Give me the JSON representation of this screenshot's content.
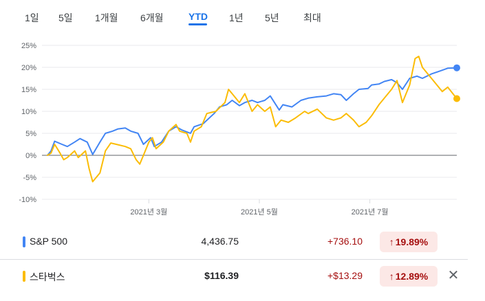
{
  "range_tabs": [
    {
      "label": "1일"
    },
    {
      "label": "5일"
    },
    {
      "label": "1개월"
    },
    {
      "label": "6개월"
    },
    {
      "label": "YTD",
      "active": true
    },
    {
      "label": "1년"
    },
    {
      "label": "5년"
    },
    {
      "label": "최대"
    }
  ],
  "chart_data": {
    "type": "line",
    "y_unit": "%",
    "ylim": [
      -10,
      25
    ],
    "yticks": [
      25,
      20,
      15,
      10,
      5,
      0,
      -5,
      -10
    ],
    "ytick_labels": [
      "25%",
      "20%",
      "15%",
      "10%",
      "5%",
      "0%",
      "-5%",
      "-10%"
    ],
    "xlim": [
      "2021-01-01",
      "2021-08-18"
    ],
    "xticks": [
      "2021-03-01",
      "2021-05-01",
      "2021-07-01"
    ],
    "xtick_labels": [
      "2021년 3월",
      "2021년 5월",
      "2021년 7월"
    ],
    "grid": "horizontal",
    "zero_line": true,
    "series": [
      {
        "name": "S&P 500",
        "color": "#4285f4",
        "points": [
          [
            "2021-01-04",
            0
          ],
          [
            "2021-01-06",
            1.0
          ],
          [
            "2021-01-08",
            3.2
          ],
          [
            "2021-01-12",
            2.5
          ],
          [
            "2021-01-15",
            2.0
          ],
          [
            "2021-01-19",
            3.0
          ],
          [
            "2021-01-22",
            3.8
          ],
          [
            "2021-01-26",
            3.0
          ],
          [
            "2021-01-29",
            0.2
          ],
          [
            "2021-02-02",
            3.0
          ],
          [
            "2021-02-05",
            5.0
          ],
          [
            "2021-02-09",
            5.5
          ],
          [
            "2021-02-12",
            6.0
          ],
          [
            "2021-02-16",
            6.2
          ],
          [
            "2021-02-19",
            5.5
          ],
          [
            "2021-02-23",
            5.0
          ],
          [
            "2021-02-26",
            2.5
          ],
          [
            "2021-03-02",
            4.0
          ],
          [
            "2021-03-04",
            2.0
          ],
          [
            "2021-03-08",
            3.0
          ],
          [
            "2021-03-12",
            5.5
          ],
          [
            "2021-03-16",
            6.5
          ],
          [
            "2021-03-19",
            5.8
          ],
          [
            "2021-03-24",
            5.0
          ],
          [
            "2021-03-26",
            6.5
          ],
          [
            "2021-03-31",
            7.2
          ],
          [
            "2021-04-06",
            9.5
          ],
          [
            "2021-04-09",
            11.0
          ],
          [
            "2021-04-13",
            11.5
          ],
          [
            "2021-04-16",
            12.5
          ],
          [
            "2021-04-20",
            11.3
          ],
          [
            "2021-04-23",
            12.0
          ],
          [
            "2021-04-27",
            12.5
          ],
          [
            "2021-04-30",
            12.0
          ],
          [
            "2021-05-04",
            12.5
          ],
          [
            "2021-05-07",
            13.5
          ],
          [
            "2021-05-12",
            10.3
          ],
          [
            "2021-05-14",
            11.5
          ],
          [
            "2021-05-19",
            11.0
          ],
          [
            "2021-05-24",
            12.5
          ],
          [
            "2021-05-28",
            13.0
          ],
          [
            "2021-06-02",
            13.3
          ],
          [
            "2021-06-07",
            13.5
          ],
          [
            "2021-06-11",
            14.0
          ],
          [
            "2021-06-15",
            13.8
          ],
          [
            "2021-06-18",
            12.5
          ],
          [
            "2021-06-22",
            14.0
          ],
          [
            "2021-06-25",
            15.0
          ],
          [
            "2021-06-30",
            15.2
          ],
          [
            "2021-07-02",
            16.0
          ],
          [
            "2021-07-06",
            16.2
          ],
          [
            "2021-07-09",
            16.8
          ],
          [
            "2021-07-13",
            17.2
          ],
          [
            "2021-07-16",
            16.5
          ],
          [
            "2021-07-19",
            15.0
          ],
          [
            "2021-07-23",
            17.5
          ],
          [
            "2021-07-27",
            18.0
          ],
          [
            "2021-07-30",
            17.5
          ],
          [
            "2021-08-04",
            18.5
          ],
          [
            "2021-08-09",
            19.2
          ],
          [
            "2021-08-13",
            19.8
          ],
          [
            "2021-08-18",
            19.89
          ]
        ]
      },
      {
        "name": "스타벅스",
        "color": "#fbbc04",
        "points": [
          [
            "2021-01-04",
            0
          ],
          [
            "2021-01-06",
            0.5
          ],
          [
            "2021-01-08",
            2.5
          ],
          [
            "2021-01-11",
            0.5
          ],
          [
            "2021-01-13",
            -1.0
          ],
          [
            "2021-01-15",
            -0.5
          ],
          [
            "2021-01-19",
            1.0
          ],
          [
            "2021-01-21",
            -0.5
          ],
          [
            "2021-01-25",
            1.0
          ],
          [
            "2021-01-27",
            -3.0
          ],
          [
            "2021-01-29",
            -6.0
          ],
          [
            "2021-02-02",
            -4.0
          ],
          [
            "2021-02-05",
            1.0
          ],
          [
            "2021-02-08",
            2.8
          ],
          [
            "2021-02-11",
            2.5
          ],
          [
            "2021-02-16",
            2.0
          ],
          [
            "2021-02-19",
            1.5
          ],
          [
            "2021-02-22",
            -1.0
          ],
          [
            "2021-02-24",
            -2.0
          ],
          [
            "2021-02-26",
            0.0
          ],
          [
            "2021-03-01",
            3.0
          ],
          [
            "2021-03-03",
            4.0
          ],
          [
            "2021-03-05",
            1.5
          ],
          [
            "2021-03-09",
            3.0
          ],
          [
            "2021-03-12",
            5.5
          ],
          [
            "2021-03-16",
            7.0
          ],
          [
            "2021-03-18",
            5.5
          ],
          [
            "2021-03-22",
            5.0
          ],
          [
            "2021-03-24",
            3.0
          ],
          [
            "2021-03-26",
            5.5
          ],
          [
            "2021-03-30",
            6.5
          ],
          [
            "2021-04-02",
            9.5
          ],
          [
            "2021-04-07",
            10.0
          ],
          [
            "2021-04-12",
            12.0
          ],
          [
            "2021-04-14",
            15.0
          ],
          [
            "2021-04-16",
            14.0
          ],
          [
            "2021-04-20",
            12.0
          ],
          [
            "2021-04-23",
            14.0
          ],
          [
            "2021-04-27",
            10.0
          ],
          [
            "2021-04-30",
            11.5
          ],
          [
            "2021-05-04",
            10.0
          ],
          [
            "2021-05-07",
            11.0
          ],
          [
            "2021-05-10",
            6.5
          ],
          [
            "2021-05-13",
            8.0
          ],
          [
            "2021-05-17",
            7.5
          ],
          [
            "2021-05-21",
            8.5
          ],
          [
            "2021-05-26",
            10.0
          ],
          [
            "2021-05-28",
            9.5
          ],
          [
            "2021-06-02",
            10.5
          ],
          [
            "2021-06-07",
            8.5
          ],
          [
            "2021-06-11",
            8.0
          ],
          [
            "2021-06-15",
            8.5
          ],
          [
            "2021-06-18",
            9.5
          ],
          [
            "2021-06-22",
            8.0
          ],
          [
            "2021-06-25",
            6.5
          ],
          [
            "2021-06-29",
            7.5
          ],
          [
            "2021-07-02",
            9.0
          ],
          [
            "2021-07-06",
            11.5
          ],
          [
            "2021-07-09",
            13.0
          ],
          [
            "2021-07-13",
            15.0
          ],
          [
            "2021-07-16",
            17.0
          ],
          [
            "2021-07-19",
            12.0
          ],
          [
            "2021-07-23",
            16.0
          ],
          [
            "2021-07-26",
            22.0
          ],
          [
            "2021-07-28",
            22.5
          ],
          [
            "2021-07-30",
            20.0
          ],
          [
            "2021-08-03",
            18.0
          ],
          [
            "2021-08-06",
            16.5
          ],
          [
            "2021-08-10",
            14.5
          ],
          [
            "2021-08-13",
            15.5
          ],
          [
            "2021-08-18",
            12.89
          ]
        ]
      }
    ]
  },
  "legend": [
    {
      "name": "S&P 500",
      "color": "#4285f4",
      "price": "4,436.75",
      "change": "+736.10",
      "arrow": "↑",
      "percent": "19.89%"
    },
    {
      "name": "스타벅스",
      "color": "#fbbc04",
      "price": "$116.39",
      "change": "+$13.29",
      "arrow": "↑",
      "percent": "12.89%",
      "remove_icon": "close-icon"
    }
  ]
}
